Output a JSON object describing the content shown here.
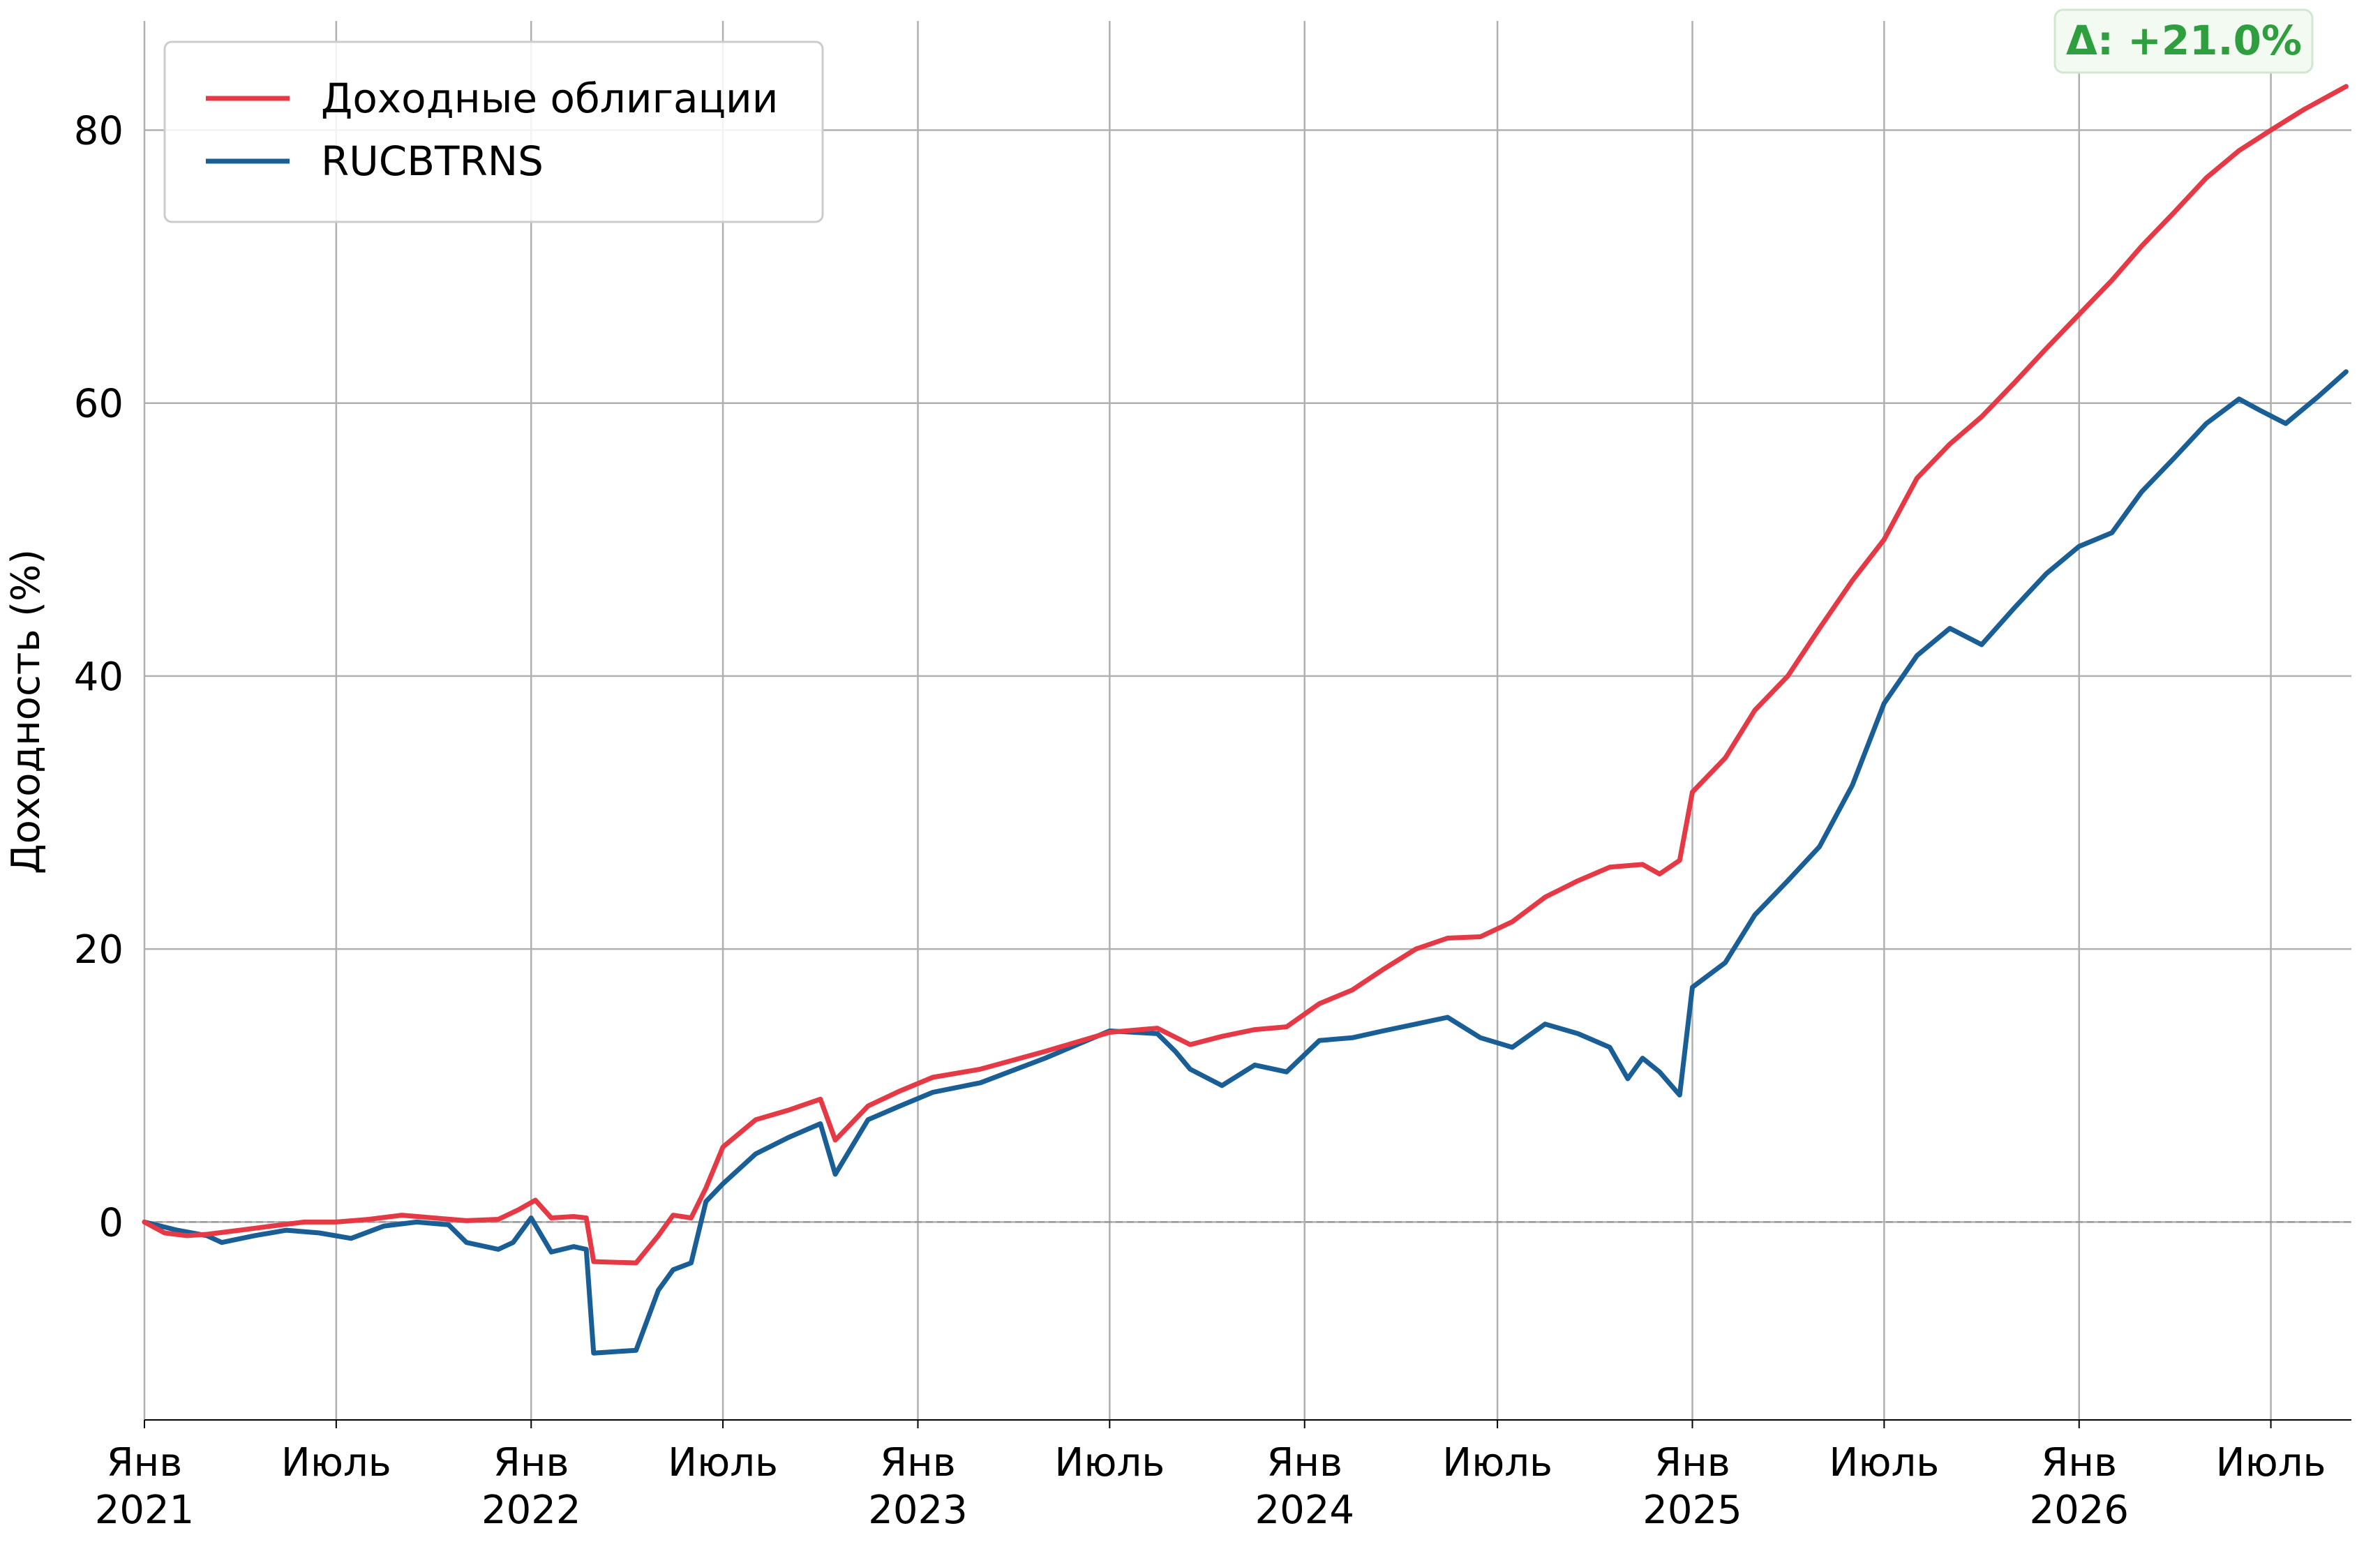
{
  "chart_data": {
    "type": "line",
    "title": "",
    "xlabel": "",
    "ylabel": "Доходность (%)",
    "ylim": [
      -14.5,
      88
    ],
    "xlim": [
      "2021-01-01",
      "2026-09-15"
    ],
    "grid": true,
    "legend_position": "top-left",
    "y_ticks": [
      0,
      20,
      40,
      60,
      80
    ],
    "x_ticks": [
      {
        "date": "2021-01-01",
        "month": "Янв",
        "year": "2021"
      },
      {
        "date": "2021-07-01",
        "month": "Июль",
        "year": ""
      },
      {
        "date": "2022-01-01",
        "month": "Янв",
        "year": "2022"
      },
      {
        "date": "2022-07-01",
        "month": "Июль",
        "year": ""
      },
      {
        "date": "2023-01-01",
        "month": "Янв",
        "year": "2023"
      },
      {
        "date": "2023-07-01",
        "month": "Июль",
        "year": ""
      },
      {
        "date": "2024-01-01",
        "month": "Янв",
        "year": "2024"
      },
      {
        "date": "2024-07-01",
        "month": "Июль",
        "year": ""
      },
      {
        "date": "2025-01-01",
        "month": "Янв",
        "year": "2025"
      },
      {
        "date": "2025-07-01",
        "month": "Июль",
        "year": ""
      },
      {
        "date": "2026-01-01",
        "month": "Янв",
        "year": "2026"
      },
      {
        "date": "2026-07-01",
        "month": "Июль",
        "year": ""
      }
    ],
    "series": [
      {
        "name": "Доходные облигации",
        "color": "#e63946",
        "points": [
          [
            "2021-01-01",
            0.0
          ],
          [
            "2021-01-20",
            -0.8
          ],
          [
            "2021-02-10",
            -1.0
          ],
          [
            "2021-03-01",
            -0.9
          ],
          [
            "2021-04-01",
            -0.6
          ],
          [
            "2021-05-01",
            -0.3
          ],
          [
            "2021-06-01",
            0.0
          ],
          [
            "2021-07-01",
            0.0
          ],
          [
            "2021-08-01",
            0.2
          ],
          [
            "2021-09-01",
            0.5
          ],
          [
            "2021-10-01",
            0.3
          ],
          [
            "2021-11-01",
            0.1
          ],
          [
            "2021-12-01",
            0.2
          ],
          [
            "2021-12-20",
            0.9
          ],
          [
            "2022-01-05",
            1.6
          ],
          [
            "2022-01-20",
            0.3
          ],
          [
            "2022-02-10",
            0.4
          ],
          [
            "2022-02-22",
            0.3
          ],
          [
            "2022-03-01",
            -2.9
          ],
          [
            "2022-04-10",
            -3.0
          ],
          [
            "2022-05-01",
            -1.0
          ],
          [
            "2022-05-15",
            0.5
          ],
          [
            "2022-06-01",
            0.3
          ],
          [
            "2022-06-15",
            2.5
          ],
          [
            "2022-07-01",
            5.5
          ],
          [
            "2022-08-01",
            7.5
          ],
          [
            "2022-09-01",
            8.2
          ],
          [
            "2022-10-01",
            9.0
          ],
          [
            "2022-10-15",
            6.0
          ],
          [
            "2022-11-15",
            8.5
          ],
          [
            "2022-12-15",
            9.6
          ],
          [
            "2023-01-15",
            10.6
          ],
          [
            "2023-03-01",
            11.2
          ],
          [
            "2023-05-01",
            12.5
          ],
          [
            "2023-07-01",
            13.9
          ],
          [
            "2023-08-15",
            14.2
          ],
          [
            "2023-09-15",
            13.0
          ],
          [
            "2023-10-15",
            13.6
          ],
          [
            "2023-11-15",
            14.1
          ],
          [
            "2023-12-15",
            14.3
          ],
          [
            "2024-01-15",
            16.0
          ],
          [
            "2024-02-15",
            17.0
          ],
          [
            "2024-03-15",
            18.5
          ],
          [
            "2024-04-15",
            20.0
          ],
          [
            "2024-05-15",
            20.8
          ],
          [
            "2024-06-15",
            20.9
          ],
          [
            "2024-07-15",
            22.0
          ],
          [
            "2024-08-15",
            23.8
          ],
          [
            "2024-09-15",
            25.0
          ],
          [
            "2024-10-15",
            26.0
          ],
          [
            "2024-11-15",
            26.2
          ],
          [
            "2024-12-01",
            25.5
          ],
          [
            "2024-12-20",
            26.5
          ],
          [
            "2025-01-01",
            31.5
          ],
          [
            "2025-02-01",
            34.0
          ],
          [
            "2025-03-01",
            37.5
          ],
          [
            "2025-04-01",
            40.0
          ],
          [
            "2025-05-01",
            43.5
          ],
          [
            "2025-06-01",
            47.0
          ],
          [
            "2025-07-01",
            50.0
          ],
          [
            "2025-08-01",
            54.5
          ],
          [
            "2025-09-01",
            57.0
          ],
          [
            "2025-10-01",
            59.0
          ],
          [
            "2025-11-01",
            61.5
          ],
          [
            "2025-12-01",
            64.0
          ],
          [
            "2026-01-01",
            66.5
          ],
          [
            "2026-02-01",
            69.0
          ],
          [
            "2026-03-01",
            71.5
          ],
          [
            "2026-04-01",
            74.0
          ],
          [
            "2026-05-01",
            76.5
          ],
          [
            "2026-06-01",
            78.5
          ],
          [
            "2026-07-01",
            80.0
          ],
          [
            "2026-08-01",
            81.5
          ],
          [
            "2026-09-10",
            83.2
          ]
        ]
      },
      {
        "name": "RUCBTRNS",
        "color": "#1a5e96",
        "points": [
          [
            "2021-01-01",
            0.0
          ],
          [
            "2021-02-01",
            -0.6
          ],
          [
            "2021-03-01",
            -1.0
          ],
          [
            "2021-03-15",
            -1.5
          ],
          [
            "2021-04-15",
            -1.0
          ],
          [
            "2021-05-15",
            -0.6
          ],
          [
            "2021-06-15",
            -0.8
          ],
          [
            "2021-07-15",
            -1.2
          ],
          [
            "2021-08-15",
            -0.3
          ],
          [
            "2021-09-15",
            0.0
          ],
          [
            "2021-10-15",
            -0.2
          ],
          [
            "2021-11-01",
            -1.5
          ],
          [
            "2021-12-01",
            -2.0
          ],
          [
            "2021-12-15",
            -1.5
          ],
          [
            "2022-01-01",
            0.3
          ],
          [
            "2022-01-20",
            -2.2
          ],
          [
            "2022-02-10",
            -1.8
          ],
          [
            "2022-02-22",
            -2.0
          ],
          [
            "2022-03-01",
            -9.6
          ],
          [
            "2022-04-10",
            -9.4
          ],
          [
            "2022-05-01",
            -5.0
          ],
          [
            "2022-05-15",
            -3.5
          ],
          [
            "2022-06-01",
            -3.0
          ],
          [
            "2022-06-15",
            1.5
          ],
          [
            "2022-07-01",
            2.8
          ],
          [
            "2022-08-01",
            5.0
          ],
          [
            "2022-09-01",
            6.2
          ],
          [
            "2022-10-01",
            7.2
          ],
          [
            "2022-10-15",
            3.5
          ],
          [
            "2022-11-15",
            7.5
          ],
          [
            "2022-12-15",
            8.5
          ],
          [
            "2023-01-15",
            9.5
          ],
          [
            "2023-03-01",
            10.2
          ],
          [
            "2023-05-01",
            12.0
          ],
          [
            "2023-07-01",
            14.0
          ],
          [
            "2023-08-15",
            13.8
          ],
          [
            "2023-09-01",
            12.5
          ],
          [
            "2023-09-15",
            11.2
          ],
          [
            "2023-10-15",
            10.0
          ],
          [
            "2023-11-15",
            11.5
          ],
          [
            "2023-12-15",
            11.0
          ],
          [
            "2024-01-15",
            13.3
          ],
          [
            "2024-02-15",
            13.5
          ],
          [
            "2024-03-15",
            14.0
          ],
          [
            "2024-04-15",
            14.5
          ],
          [
            "2024-05-15",
            15.0
          ],
          [
            "2024-06-15",
            13.5
          ],
          [
            "2024-07-15",
            12.8
          ],
          [
            "2024-08-15",
            14.5
          ],
          [
            "2024-09-15",
            13.8
          ],
          [
            "2024-10-15",
            12.8
          ],
          [
            "2024-11-01",
            10.5
          ],
          [
            "2024-11-15",
            12.0
          ],
          [
            "2024-12-01",
            11.0
          ],
          [
            "2024-12-20",
            9.3
          ],
          [
            "2025-01-01",
            17.2
          ],
          [
            "2025-02-01",
            19.0
          ],
          [
            "2025-03-01",
            22.5
          ],
          [
            "2025-04-01",
            25.0
          ],
          [
            "2025-05-01",
            27.5
          ],
          [
            "2025-06-01",
            32.0
          ],
          [
            "2025-07-01",
            38.0
          ],
          [
            "2025-08-01",
            41.5
          ],
          [
            "2025-09-01",
            43.5
          ],
          [
            "2025-10-01",
            42.3
          ],
          [
            "2025-11-01",
            45.0
          ],
          [
            "2025-12-01",
            47.5
          ],
          [
            "2026-01-01",
            49.5
          ],
          [
            "2026-02-01",
            50.5
          ],
          [
            "2026-03-01",
            53.5
          ],
          [
            "2026-04-01",
            56.0
          ],
          [
            "2026-05-01",
            58.5
          ],
          [
            "2026-06-01",
            60.3
          ],
          [
            "2026-06-20",
            59.5
          ],
          [
            "2026-07-15",
            58.5
          ],
          [
            "2026-08-15",
            60.5
          ],
          [
            "2026-09-10",
            62.3
          ]
        ]
      }
    ],
    "annotation": {
      "text": "Δ: +21.0%",
      "position": "top-right",
      "color": "#2e9e3e"
    }
  }
}
